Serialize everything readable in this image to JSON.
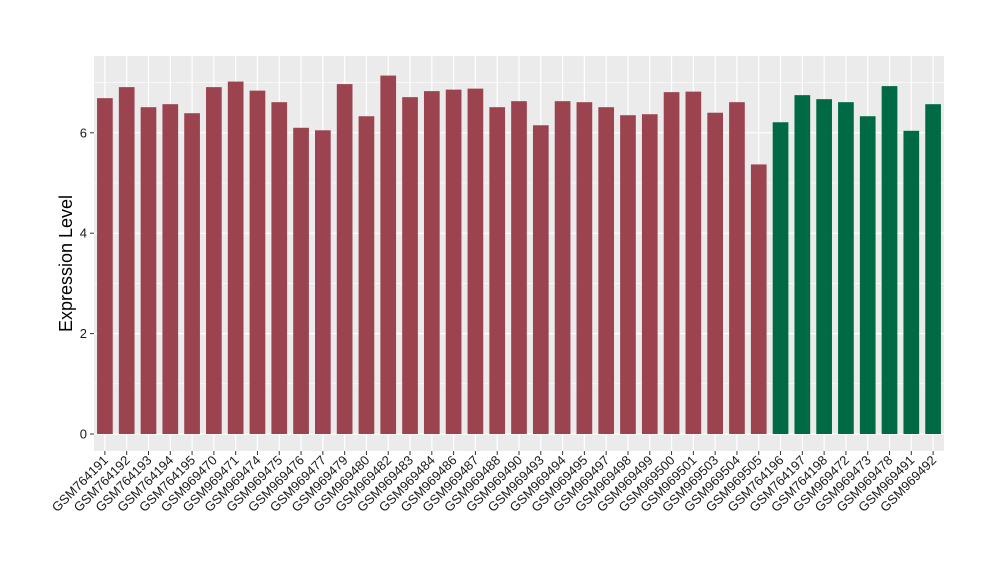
{
  "chart_data": {
    "type": "bar",
    "title": "",
    "xlabel": "",
    "ylabel": "Expression Level",
    "ylim": [
      0,
      7.5
    ],
    "yticks": [
      0,
      2,
      4,
      6
    ],
    "grid": true,
    "background": "#ebebeb",
    "grid_color": "#ffffff",
    "categories": [
      "GSM764191",
      "GSM764192",
      "GSM764193",
      "GSM764194",
      "GSM764195",
      "GSM969470",
      "GSM969471",
      "GSM969474",
      "GSM969475",
      "GSM969476",
      "GSM969477",
      "GSM969479",
      "GSM969480",
      "GSM969482",
      "GSM969483",
      "GSM969484",
      "GSM969486",
      "GSM969487",
      "GSM969488",
      "GSM969490",
      "GSM969493",
      "GSM969494",
      "GSM969495",
      "GSM969497",
      "GSM969498",
      "GSM969499",
      "GSM969500",
      "GSM969501",
      "GSM969503",
      "GSM969504",
      "GSM969505",
      "GSM764196",
      "GSM764197",
      "GSM764198",
      "GSM969472",
      "GSM969473",
      "GSM969478",
      "GSM969491",
      "GSM969492"
    ],
    "values": [
      6.69,
      6.91,
      6.51,
      6.57,
      6.39,
      6.91,
      7.02,
      6.84,
      6.61,
      6.1,
      6.05,
      6.97,
      6.33,
      7.14,
      6.71,
      6.83,
      6.86,
      6.88,
      6.51,
      6.63,
      6.15,
      6.63,
      6.61,
      6.51,
      6.35,
      6.37,
      6.81,
      6.82,
      6.4,
      6.61,
      5.37,
      6.21,
      6.75,
      6.67,
      6.61,
      6.33,
      6.93,
      6.04,
      6.57
    ],
    "colors": [
      "#9b4450",
      "#9b4450",
      "#9b4450",
      "#9b4450",
      "#9b4450",
      "#9b4450",
      "#9b4450",
      "#9b4450",
      "#9b4450",
      "#9b4450",
      "#9b4450",
      "#9b4450",
      "#9b4450",
      "#9b4450",
      "#9b4450",
      "#9b4450",
      "#9b4450",
      "#9b4450",
      "#9b4450",
      "#9b4450",
      "#9b4450",
      "#9b4450",
      "#9b4450",
      "#9b4450",
      "#9b4450",
      "#9b4450",
      "#9b4450",
      "#9b4450",
      "#9b4450",
      "#9b4450",
      "#9b4450",
      "#006a44",
      "#006a44",
      "#006a44",
      "#006a44",
      "#006a44",
      "#006a44",
      "#006a44",
      "#006a44"
    ]
  }
}
